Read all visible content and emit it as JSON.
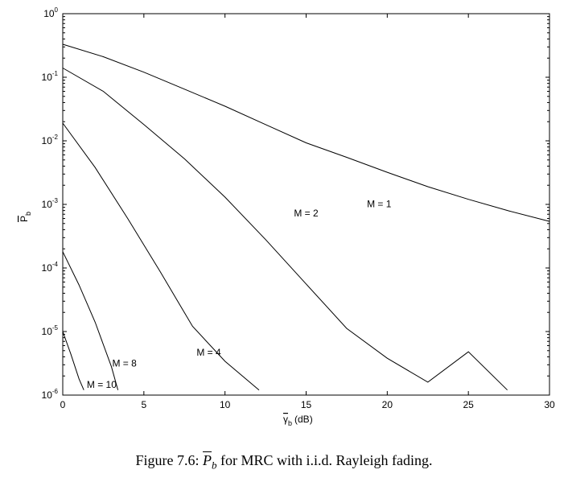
{
  "chart_data": {
    "type": "line",
    "title": "",
    "xlabel": {
      "symbol": "γ",
      "subscript": "b",
      "unit": "(dB)"
    },
    "ylabel": {
      "symbol": "P",
      "subscript": "b"
    },
    "xlim": [
      0,
      30
    ],
    "ylim": [
      1e-06,
      1
    ],
    "yscale": "log",
    "xticks": [
      "0",
      "5",
      "10",
      "15",
      "20",
      "25",
      "30"
    ],
    "yticks": [
      {
        "base": "10",
        "exp": "-6"
      },
      {
        "base": "10",
        "exp": "-5"
      },
      {
        "base": "10",
        "exp": "-4"
      },
      {
        "base": "10",
        "exp": "-3"
      },
      {
        "base": "10",
        "exp": "-2"
      },
      {
        "base": "10",
        "exp": "-1"
      },
      {
        "base": "10",
        "exp": "0"
      }
    ],
    "grid": false,
    "series": [
      {
        "name": "M = 1",
        "x": [
          0,
          2.5,
          5,
          7.5,
          10,
          12.5,
          15,
          17.5,
          20,
          22.5,
          25,
          27.5,
          30
        ],
        "y": [
          0.33,
          0.21,
          0.12,
          0.065,
          0.035,
          0.018,
          0.0093,
          0.0055,
          0.0032,
          0.0019,
          0.0012,
          0.00079,
          0.00054
        ]
      },
      {
        "name": "M = 2",
        "x": [
          0,
          2.5,
          5,
          7.5,
          10,
          12.5,
          15,
          17.5,
          20,
          22.5,
          25,
          27.4
        ],
        "y": [
          0.14,
          0.06,
          0.018,
          0.0052,
          0.0013,
          0.00028,
          5.6e-05,
          1.12e-05,
          3.8e-06,
          1.6e-06,
          4.8e-06,
          1.2e-06
        ]
      },
      {
        "name": "M = 4",
        "x": [
          0,
          2,
          4,
          6,
          8,
          10,
          12.1
        ],
        "y": [
          0.019,
          0.0038,
          0.0006,
          8.8e-05,
          1.21e-05,
          3.4e-06,
          1.2e-06
        ]
      },
      {
        "name": "M = 8",
        "x": [
          0,
          1,
          2,
          3,
          3.4
        ],
        "y": [
          0.00018,
          5.4e-05,
          1.4e-05,
          2.8e-06,
          1.2e-06
        ]
      },
      {
        "name": "M = 10",
        "x": [
          0,
          0.5,
          1,
          1.3
        ],
        "y": [
          1e-05,
          4.4e-06,
          1.8e-06,
          1.2e-06
        ]
      }
    ],
    "labels": [
      {
        "text": "M = 1",
        "x": 19.5,
        "y": 0.0009
      },
      {
        "text": "M = 2",
        "x": 15.0,
        "y": 0.00065
      },
      {
        "text": "M = 4",
        "x": 9.0,
        "y": 4.2e-06
      },
      {
        "text": "M = 8",
        "x": 3.8,
        "y": 2.8e-06
      },
      {
        "text": "M = 10",
        "x": 2.4,
        "y": 1.3e-06
      }
    ]
  },
  "caption": {
    "prefix": "Figure 7.6:",
    "symbol": "P",
    "subscript": "b",
    "rest": "for MRC with i.i.d. Rayleigh fading."
  }
}
